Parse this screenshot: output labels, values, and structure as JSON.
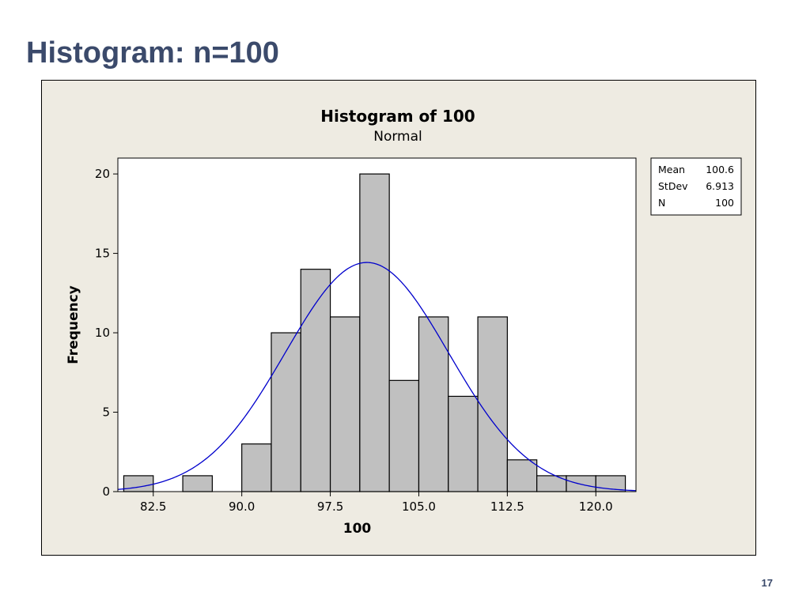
{
  "slide": {
    "title": "Histogram: n=100",
    "page_number": "17"
  },
  "chart_data": {
    "type": "bar",
    "title": "Histogram of 100",
    "subtitle": "Normal",
    "xlabel": "100",
    "ylabel": "Frequency",
    "bin_width": 2.5,
    "bins": [
      {
        "start": 80,
        "end": 82.5,
        "count": 1
      },
      {
        "start": 82.5,
        "end": 85,
        "count": 0
      },
      {
        "start": 85,
        "end": 87.5,
        "count": 1
      },
      {
        "start": 87.5,
        "end": 90,
        "count": 0
      },
      {
        "start": 90,
        "end": 92.5,
        "count": 3
      },
      {
        "start": 92.5,
        "end": 95,
        "count": 10
      },
      {
        "start": 95,
        "end": 97.5,
        "count": 14
      },
      {
        "start": 97.5,
        "end": 100,
        "count": 11
      },
      {
        "start": 100,
        "end": 102.5,
        "count": 20
      },
      {
        "start": 102.5,
        "end": 105,
        "count": 7
      },
      {
        "start": 105,
        "end": 107.5,
        "count": 11
      },
      {
        "start": 107.5,
        "end": 110,
        "count": 6
      },
      {
        "start": 110,
        "end": 112.5,
        "count": 11
      },
      {
        "start": 112.5,
        "end": 115,
        "count": 2
      },
      {
        "start": 115,
        "end": 117.5,
        "count": 1
      },
      {
        "start": 117.5,
        "end": 120,
        "count": 1
      },
      {
        "start": 120,
        "end": 122.5,
        "count": 1
      }
    ],
    "xlim": [
      79.5,
      123.4
    ],
    "ylim": [
      0,
      21
    ],
    "xticks": [
      82.5,
      90.0,
      97.5,
      105.0,
      112.5,
      120.0
    ],
    "xtick_labels": [
      "82.5",
      "90.0",
      "97.5",
      "105.0",
      "112.5",
      "120.0"
    ],
    "yticks": [
      0,
      5,
      10,
      15,
      20
    ],
    "ytick_labels": [
      "0",
      "5",
      "10",
      "15",
      "20"
    ],
    "fit": {
      "distribution": "normal",
      "mean": 100.6,
      "stdev": 6.913,
      "n": 100
    },
    "legend": {
      "placement": "top-right",
      "rows": [
        {
          "label": "Mean",
          "value": "100.6"
        },
        {
          "label": "StDev",
          "value": "6.913"
        },
        {
          "label": "N",
          "value": "100"
        }
      ]
    },
    "colors": {
      "bar_fill": "#c0c0c0",
      "bar_stroke": "#000000",
      "curve": "#0000cc",
      "figure_bg": "#eeebe2",
      "plot_bg": "#ffffff"
    },
    "grid": false
  }
}
